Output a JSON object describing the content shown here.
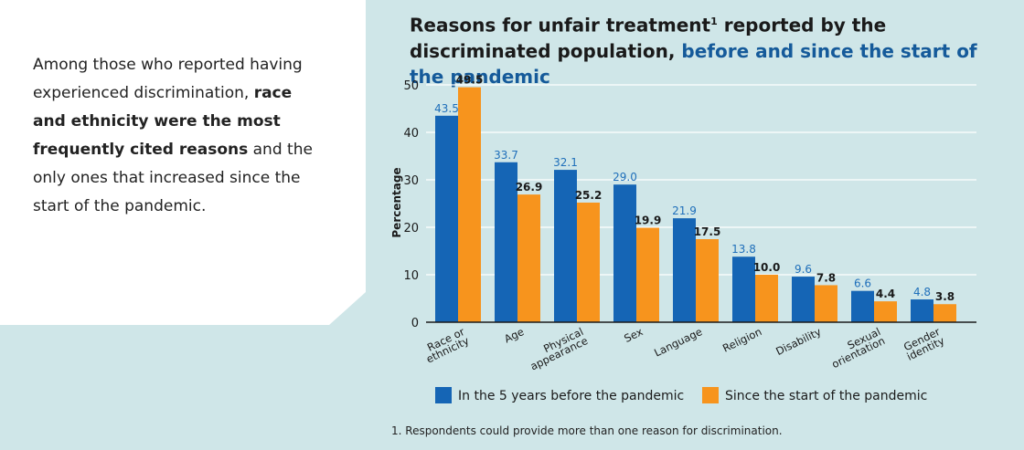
{
  "intro": {
    "part1": "Among those who reported having experienced discrimination, ",
    "bold": "race and ethnicity were the most frequently cited reasons",
    "part2": " and the only ones that increased since the start of the pandemic."
  },
  "chart_title": {
    "main": "Reasons for unfair treatment",
    "sup": "1",
    "main2": " reported by the discriminated population, ",
    "accent": "before and since the start of the pandemic"
  },
  "footnote": "1. Respondents could provide more than one reason for discrimination.",
  "colors": {
    "before": "#1565b5",
    "since": "#f7941d",
    "before_label": "#1f6fba",
    "since_label": "#1a1a1a"
  },
  "chart_data": {
    "type": "bar",
    "categories": [
      [
        "Race or",
        "ethnicity"
      ],
      [
        "Age"
      ],
      [
        "Physical",
        "appearance"
      ],
      [
        "Sex"
      ],
      [
        "Language"
      ],
      [
        "Religion"
      ],
      [
        "Disability"
      ],
      [
        "Sexual",
        "orientation"
      ],
      [
        "Gender",
        "identity"
      ]
    ],
    "series": [
      {
        "name": "In the 5 years before the pandemic",
        "values": [
          43.5,
          33.7,
          32.1,
          29.0,
          21.9,
          13.8,
          9.6,
          6.6,
          4.8
        ]
      },
      {
        "name": "Since the start of the pandemic",
        "values": [
          49.5,
          26.9,
          25.2,
          19.9,
          17.5,
          10.0,
          7.8,
          4.4,
          3.8
        ]
      }
    ],
    "ylabel": "Percentage",
    "ylim": [
      0,
      50
    ],
    "yticks": [
      0,
      10,
      20,
      30,
      40,
      50
    ],
    "grid": true
  }
}
